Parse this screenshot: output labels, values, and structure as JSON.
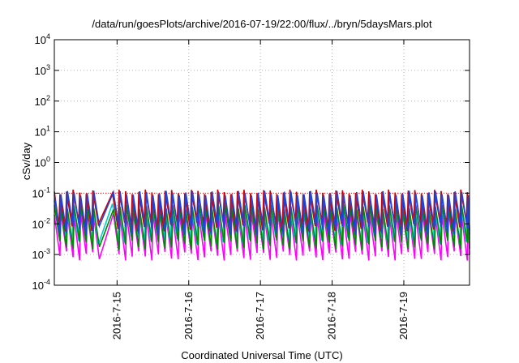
{
  "chart_data": {
    "type": "line",
    "title": "/data/run/goesPlots/archive/2016-07-19/22:00/flux/../bryn/5daysMars.plot",
    "xlabel": "Coordinated Universal Time (UTC)",
    "ylabel": "cSv/day",
    "y_scale": "log",
    "ylim": [
      0.0001,
      10000
    ],
    "y_ticks": [
      {
        "value": 0.0001,
        "base": "10",
        "exp": "-4"
      },
      {
        "value": 0.001,
        "base": "10",
        "exp": "-3"
      },
      {
        "value": 0.01,
        "base": "10",
        "exp": "-2"
      },
      {
        "value": 0.1,
        "base": "10",
        "exp": "-1"
      },
      {
        "value": 1,
        "base": "10",
        "exp": "0"
      },
      {
        "value": 10,
        "base": "10",
        "exp": "1"
      },
      {
        "value": 100,
        "base": "10",
        "exp": "2"
      },
      {
        "value": 1000,
        "base": "10",
        "exp": "3"
      },
      {
        "value": 10000,
        "base": "10",
        "exp": "4"
      }
    ],
    "xlim": [
      "2016-07-14 03:00",
      "2016-07-19 22:00"
    ],
    "x_ticks": [
      "2016-7-15",
      "2016-7-16",
      "2016-7-17",
      "2016-7-18",
      "2016-7-19"
    ],
    "grid": true,
    "reference_line": {
      "value": 0.1,
      "color": "#ff0000",
      "style": "dotted"
    },
    "series_envelopes": {
      "note": "sawtooth with ~2.2 h period (Mars rotation/day cycle approximation)",
      "series": [
        {
          "color": "#ff00ff",
          "peak": 0.02,
          "trough": 0.0009
        },
        {
          "color": "#00cccc",
          "peak": 0.05,
          "trough": 0.003
        },
        {
          "color": "#008800",
          "peak": 0.035,
          "trough": 0.002
        },
        {
          "color": "#cc0000",
          "peak": 0.11,
          "trough": 0.008
        },
        {
          "color": "#2244dd",
          "peak": 0.1,
          "trough": 0.006
        }
      ]
    }
  }
}
